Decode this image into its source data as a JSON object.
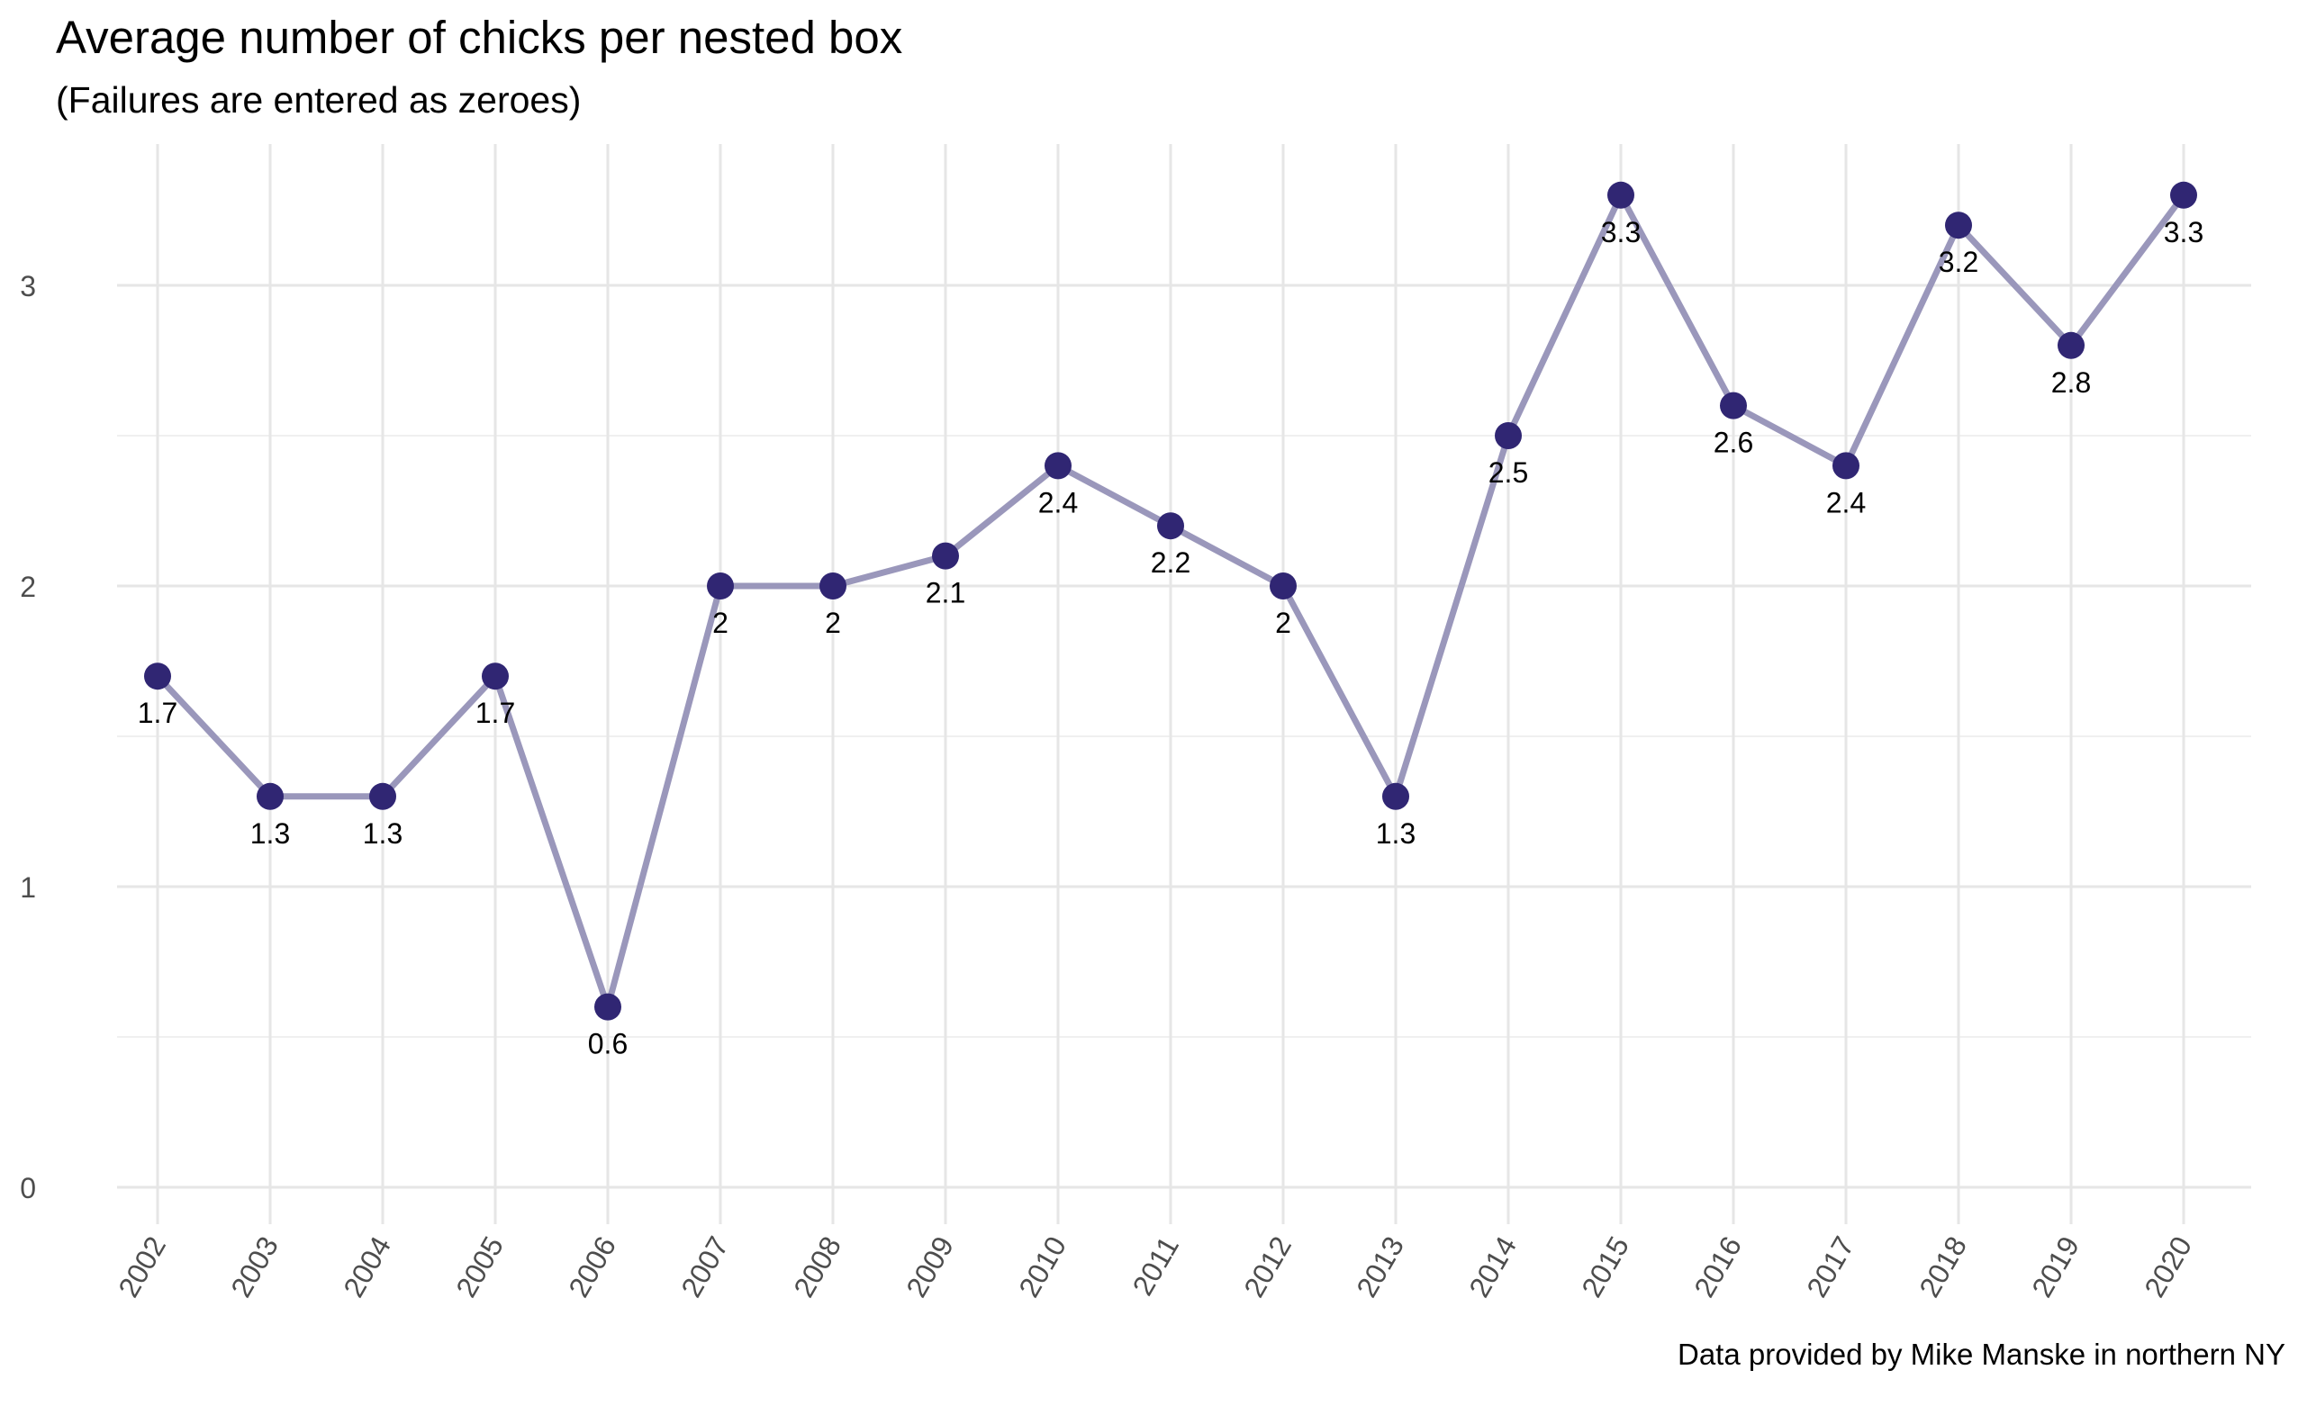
{
  "chart_data": {
    "type": "line",
    "title": "Average number of chicks per nested box",
    "subtitle": "(Failures are entered as zeroes)",
    "caption": "Data provided by Mike Manske in northern NY",
    "xlabel": "",
    "ylabel": "",
    "categories": [
      "2002",
      "2003",
      "2004",
      "2005",
      "2006",
      "2007",
      "2008",
      "2009",
      "2010",
      "2011",
      "2012",
      "2013",
      "2014",
      "2015",
      "2016",
      "2017",
      "2018",
      "2019",
      "2020"
    ],
    "values": [
      1.7,
      1.3,
      1.3,
      1.7,
      0.6,
      2.0,
      2.0,
      2.1,
      2.4,
      2.2,
      2.0,
      1.3,
      2.5,
      3.3,
      2.6,
      2.4,
      3.2,
      2.8,
      3.3
    ],
    "labels": [
      "1.7",
      "1.3",
      "1.3",
      "1.7",
      "0.6",
      "2",
      "2",
      "2.1",
      "2.4",
      "2.2",
      "2",
      "1.3",
      "2.5",
      "3.3",
      "2.6",
      "2.4",
      "3.2",
      "2.8",
      "3.3"
    ],
    "yticks": [
      0,
      1,
      2,
      3
    ],
    "ylim": [
      -0.15,
      3.45
    ],
    "grid": true,
    "legend": "none",
    "colors": {
      "point": "#302673",
      "line": "#9a97bb",
      "grid_major": "#e6e6e6",
      "grid_minor": "#f0f0f0",
      "tick_text": "#4d4d4d"
    }
  }
}
